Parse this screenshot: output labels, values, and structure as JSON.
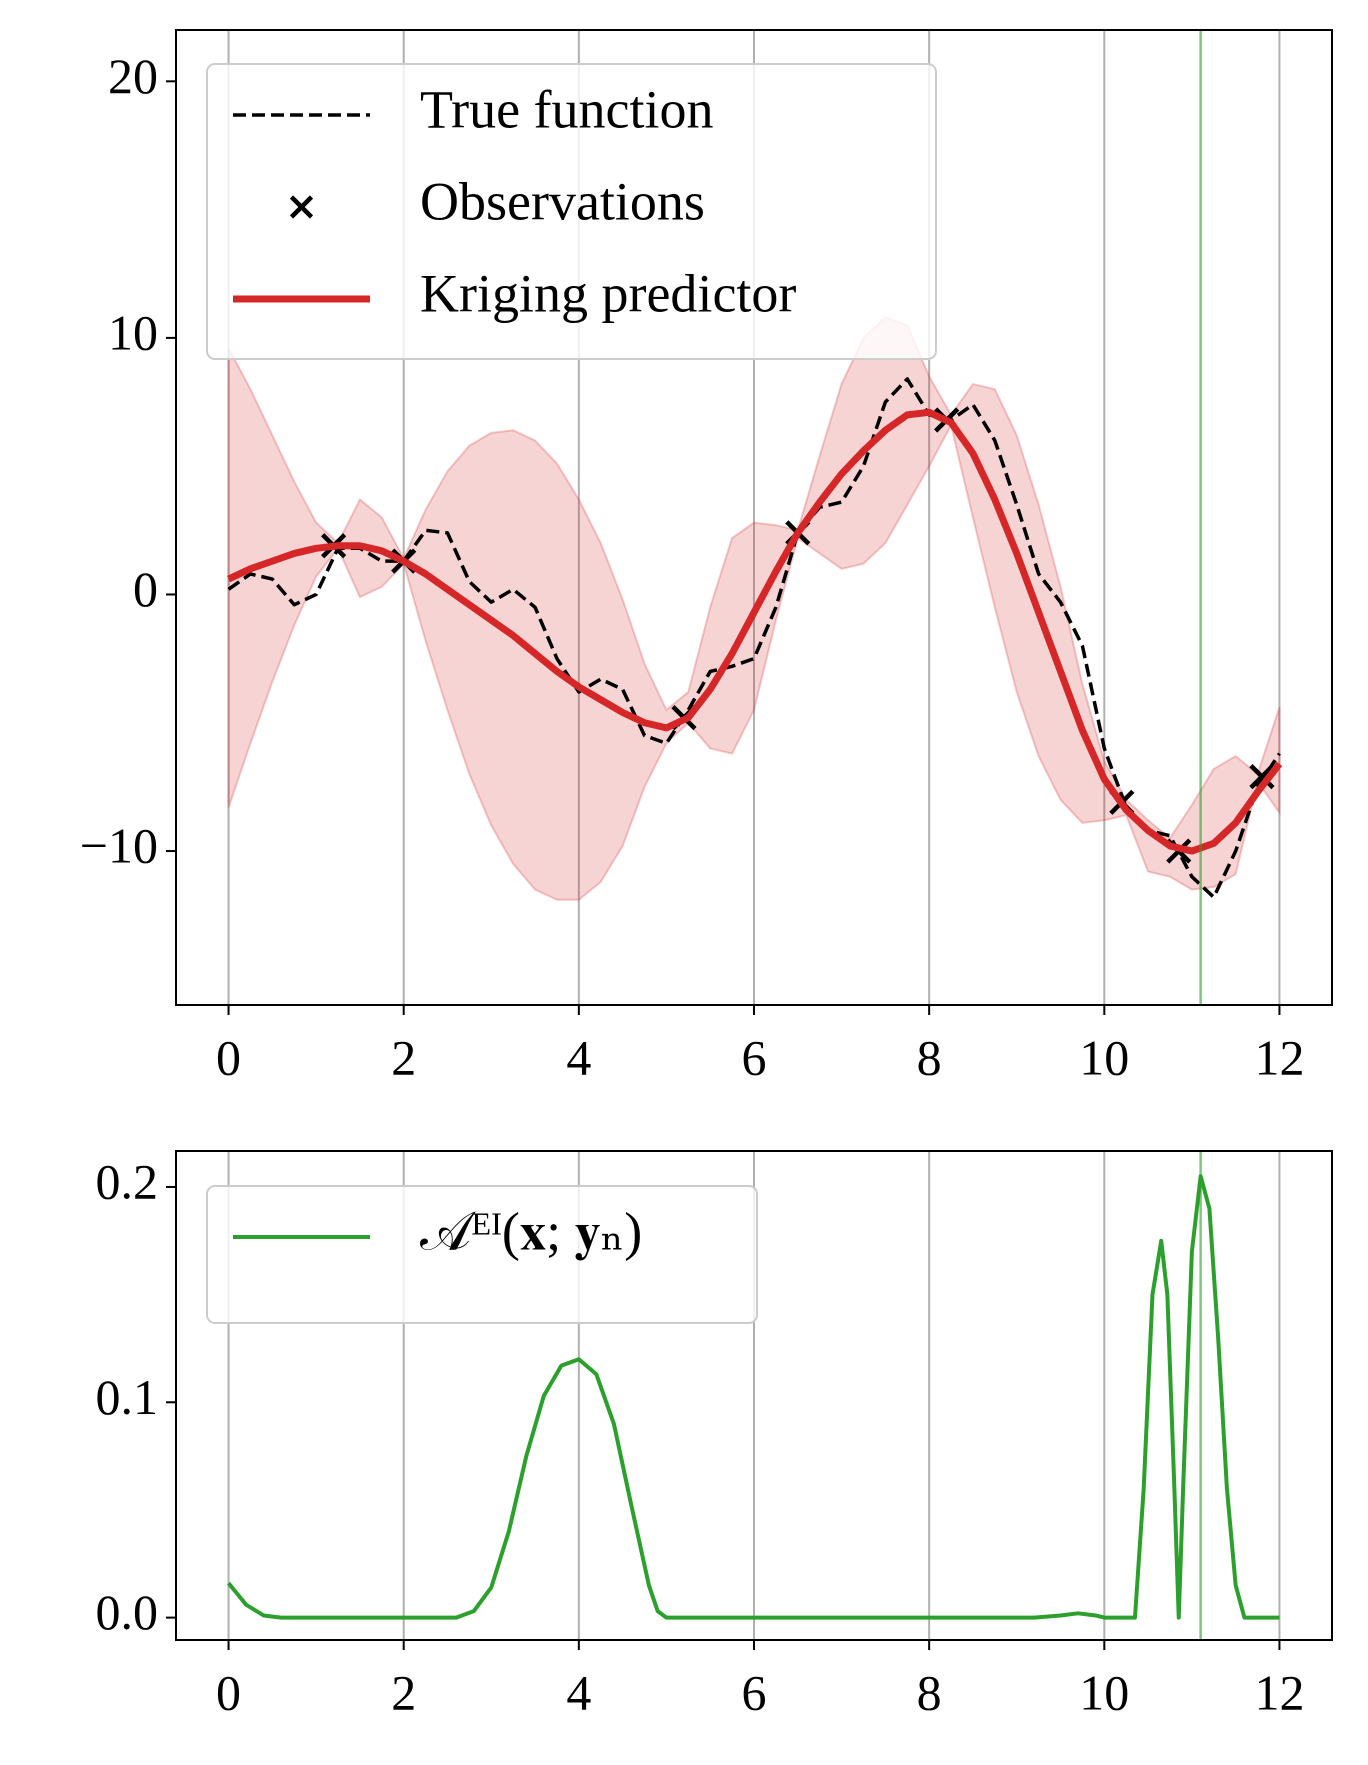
{
  "chart_data": [
    {
      "type": "line",
      "x": [
        0,
        0.25,
        0.5,
        0.75,
        1,
        1.25,
        1.5,
        1.75,
        2,
        2.25,
        2.5,
        2.75,
        3,
        3.25,
        3.5,
        3.75,
        4,
        4.25,
        4.5,
        4.75,
        5,
        5.25,
        5.5,
        5.75,
        6,
        6.25,
        6.5,
        6.75,
        7,
        7.25,
        7.5,
        7.75,
        8,
        8.25,
        8.5,
        8.75,
        9,
        9.25,
        9.5,
        9.75,
        10,
        10.25,
        10.5,
        10.75,
        11,
        11.25,
        11.5,
        11.75,
        12
      ],
      "series": [
        {
          "name": "True function",
          "color": "#000000",
          "style": "dashed",
          "values": [
            0.2,
            0.8,
            0.6,
            -0.4,
            0.0,
            1.8,
            1.8,
            1.3,
            1.3,
            2.5,
            2.4,
            0.5,
            -0.3,
            0.2,
            -0.5,
            -2.5,
            -3.8,
            -3.3,
            -3.7,
            -5.5,
            -5.8,
            -4.5,
            -3.0,
            -2.8,
            -2.5,
            -0.5,
            2.4,
            3.4,
            3.6,
            5.0,
            7.5,
            8.4,
            7.0,
            6.8,
            7.4,
            6.0,
            3.5,
            0.8,
            -0.3,
            -2.0,
            -6.0,
            -8.3,
            -9.2,
            -9.4,
            -11.0,
            -11.8,
            -10.0,
            -7.5,
            -6.2
          ]
        },
        {
          "name": "Observations",
          "color": "#000000",
          "style": "markers",
          "x": [
            1.2,
            2.0,
            5.2,
            6.5,
            8.2,
            10.2,
            10.85,
            11.8
          ],
          "values": [
            1.9,
            1.3,
            -4.8,
            2.4,
            6.8,
            -8.1,
            -10.0,
            -7.1
          ]
        },
        {
          "name": "Kriging predictor",
          "color": "#d62728",
          "style": "solid",
          "values": [
            0.6,
            1.0,
            1.3,
            1.6,
            1.8,
            1.9,
            1.9,
            1.7,
            1.3,
            0.8,
            0.2,
            -0.4,
            -1.0,
            -1.6,
            -2.3,
            -3.0,
            -3.6,
            -4.1,
            -4.6,
            -5.0,
            -5.2,
            -4.8,
            -3.7,
            -2.3,
            -0.7,
            0.9,
            2.4,
            3.6,
            4.7,
            5.6,
            6.4,
            7.0,
            7.1,
            6.7,
            5.5,
            3.7,
            1.6,
            -0.7,
            -3.0,
            -5.3,
            -7.2,
            -8.4,
            -9.2,
            -9.8,
            -10.0,
            -9.7,
            -8.9,
            -7.7,
            -6.6
          ]
        }
      ],
      "band": {
        "color": "#d62728",
        "upper": [
          9.6,
          8.0,
          6.2,
          4.4,
          2.8,
          2.0,
          3.7,
          3.0,
          1.4,
          3.3,
          4.8,
          5.8,
          6.3,
          6.4,
          6.0,
          5.1,
          3.7,
          2.0,
          -0.2,
          -2.7,
          -4.5,
          -3.8,
          -0.5,
          2.2,
          2.8,
          2.7,
          2.5,
          5.4,
          8.2,
          10.0,
          10.8,
          10.5,
          8.5,
          7.0,
          8.2,
          8.0,
          6.2,
          3.5,
          0.3,
          -3.5,
          -6.5,
          -8.0,
          -8.8,
          -9.5,
          -8.2,
          -6.8,
          -6.3,
          -7.0,
          -4.4
        ],
        "lower": [
          -8.3,
          -5.8,
          -3.4,
          -1.2,
          0.7,
          1.8,
          -0.1,
          0.3,
          1.2,
          -1.8,
          -4.5,
          -7.0,
          -9.0,
          -10.5,
          -11.5,
          -11.9,
          -11.9,
          -11.2,
          -9.8,
          -7.5,
          -5.8,
          -5.0,
          -6.0,
          -6.2,
          -4.5,
          -1.0,
          2.2,
          1.6,
          1.0,
          1.2,
          2.0,
          3.5,
          5.0,
          6.6,
          3.0,
          -0.5,
          -3.8,
          -6.3,
          -8.0,
          -8.9,
          -8.8,
          -8.6,
          -10.8,
          -11.0,
          -11.5,
          -11.4,
          -10.9,
          -7.3,
          -8.5
        ]
      },
      "vline": 11.1,
      "vline_color": "#2ca02c",
      "xlim": [
        -0.6,
        12.6
      ],
      "ylim": [
        -16,
        22
      ],
      "xticks": [
        0,
        2,
        4,
        6,
        8,
        10,
        12
      ],
      "yticks": [
        {
          "value": -10,
          "label": "−10"
        },
        0,
        10,
        20
      ],
      "grid": true,
      "legend": "upper left"
    },
    {
      "type": "line",
      "x": [
        0,
        0.2,
        0.4,
        0.6,
        2.6,
        2.8,
        3.0,
        3.2,
        3.4,
        3.6,
        3.8,
        4.0,
        4.2,
        4.4,
        4.6,
        4.8,
        4.9,
        5.0,
        9.2,
        9.5,
        9.7,
        9.9,
        10.0,
        10.35,
        10.45,
        10.55,
        10.65,
        10.72,
        10.8,
        10.85,
        10.9,
        11.0,
        11.1,
        11.2,
        11.3,
        11.4,
        11.5,
        11.6,
        12.0
      ],
      "series": [
        {
          "name": "𝒜ᴱᴵ(𝐱; 𝐲ₙ)",
          "color": "#2ca02c",
          "style": "solid",
          "values": [
            0.016,
            0.006,
            0.001,
            0,
            0,
            0.003,
            0.014,
            0.04,
            0.075,
            0.103,
            0.117,
            0.12,
            0.113,
            0.09,
            0.052,
            0.015,
            0.003,
            0,
            0,
            0.001,
            0.002,
            0.001,
            0,
            0,
            0.06,
            0.15,
            0.175,
            0.15,
            0.06,
            0,
            0.06,
            0.17,
            0.205,
            0.19,
            0.13,
            0.06,
            0.015,
            0,
            0
          ]
        }
      ],
      "vline": 11.1,
      "vline_color": "#2ca02c",
      "xlim": [
        -0.6,
        12.6
      ],
      "ylim": [
        -0.0104,
        0.2167
      ],
      "xticks": [
        0,
        2,
        4,
        6,
        8,
        10,
        12
      ],
      "yticks": [
        {
          "value": 0,
          "label": "0.0"
        },
        0.1,
        0.2
      ],
      "grid": true,
      "legend": "upper left"
    }
  ]
}
